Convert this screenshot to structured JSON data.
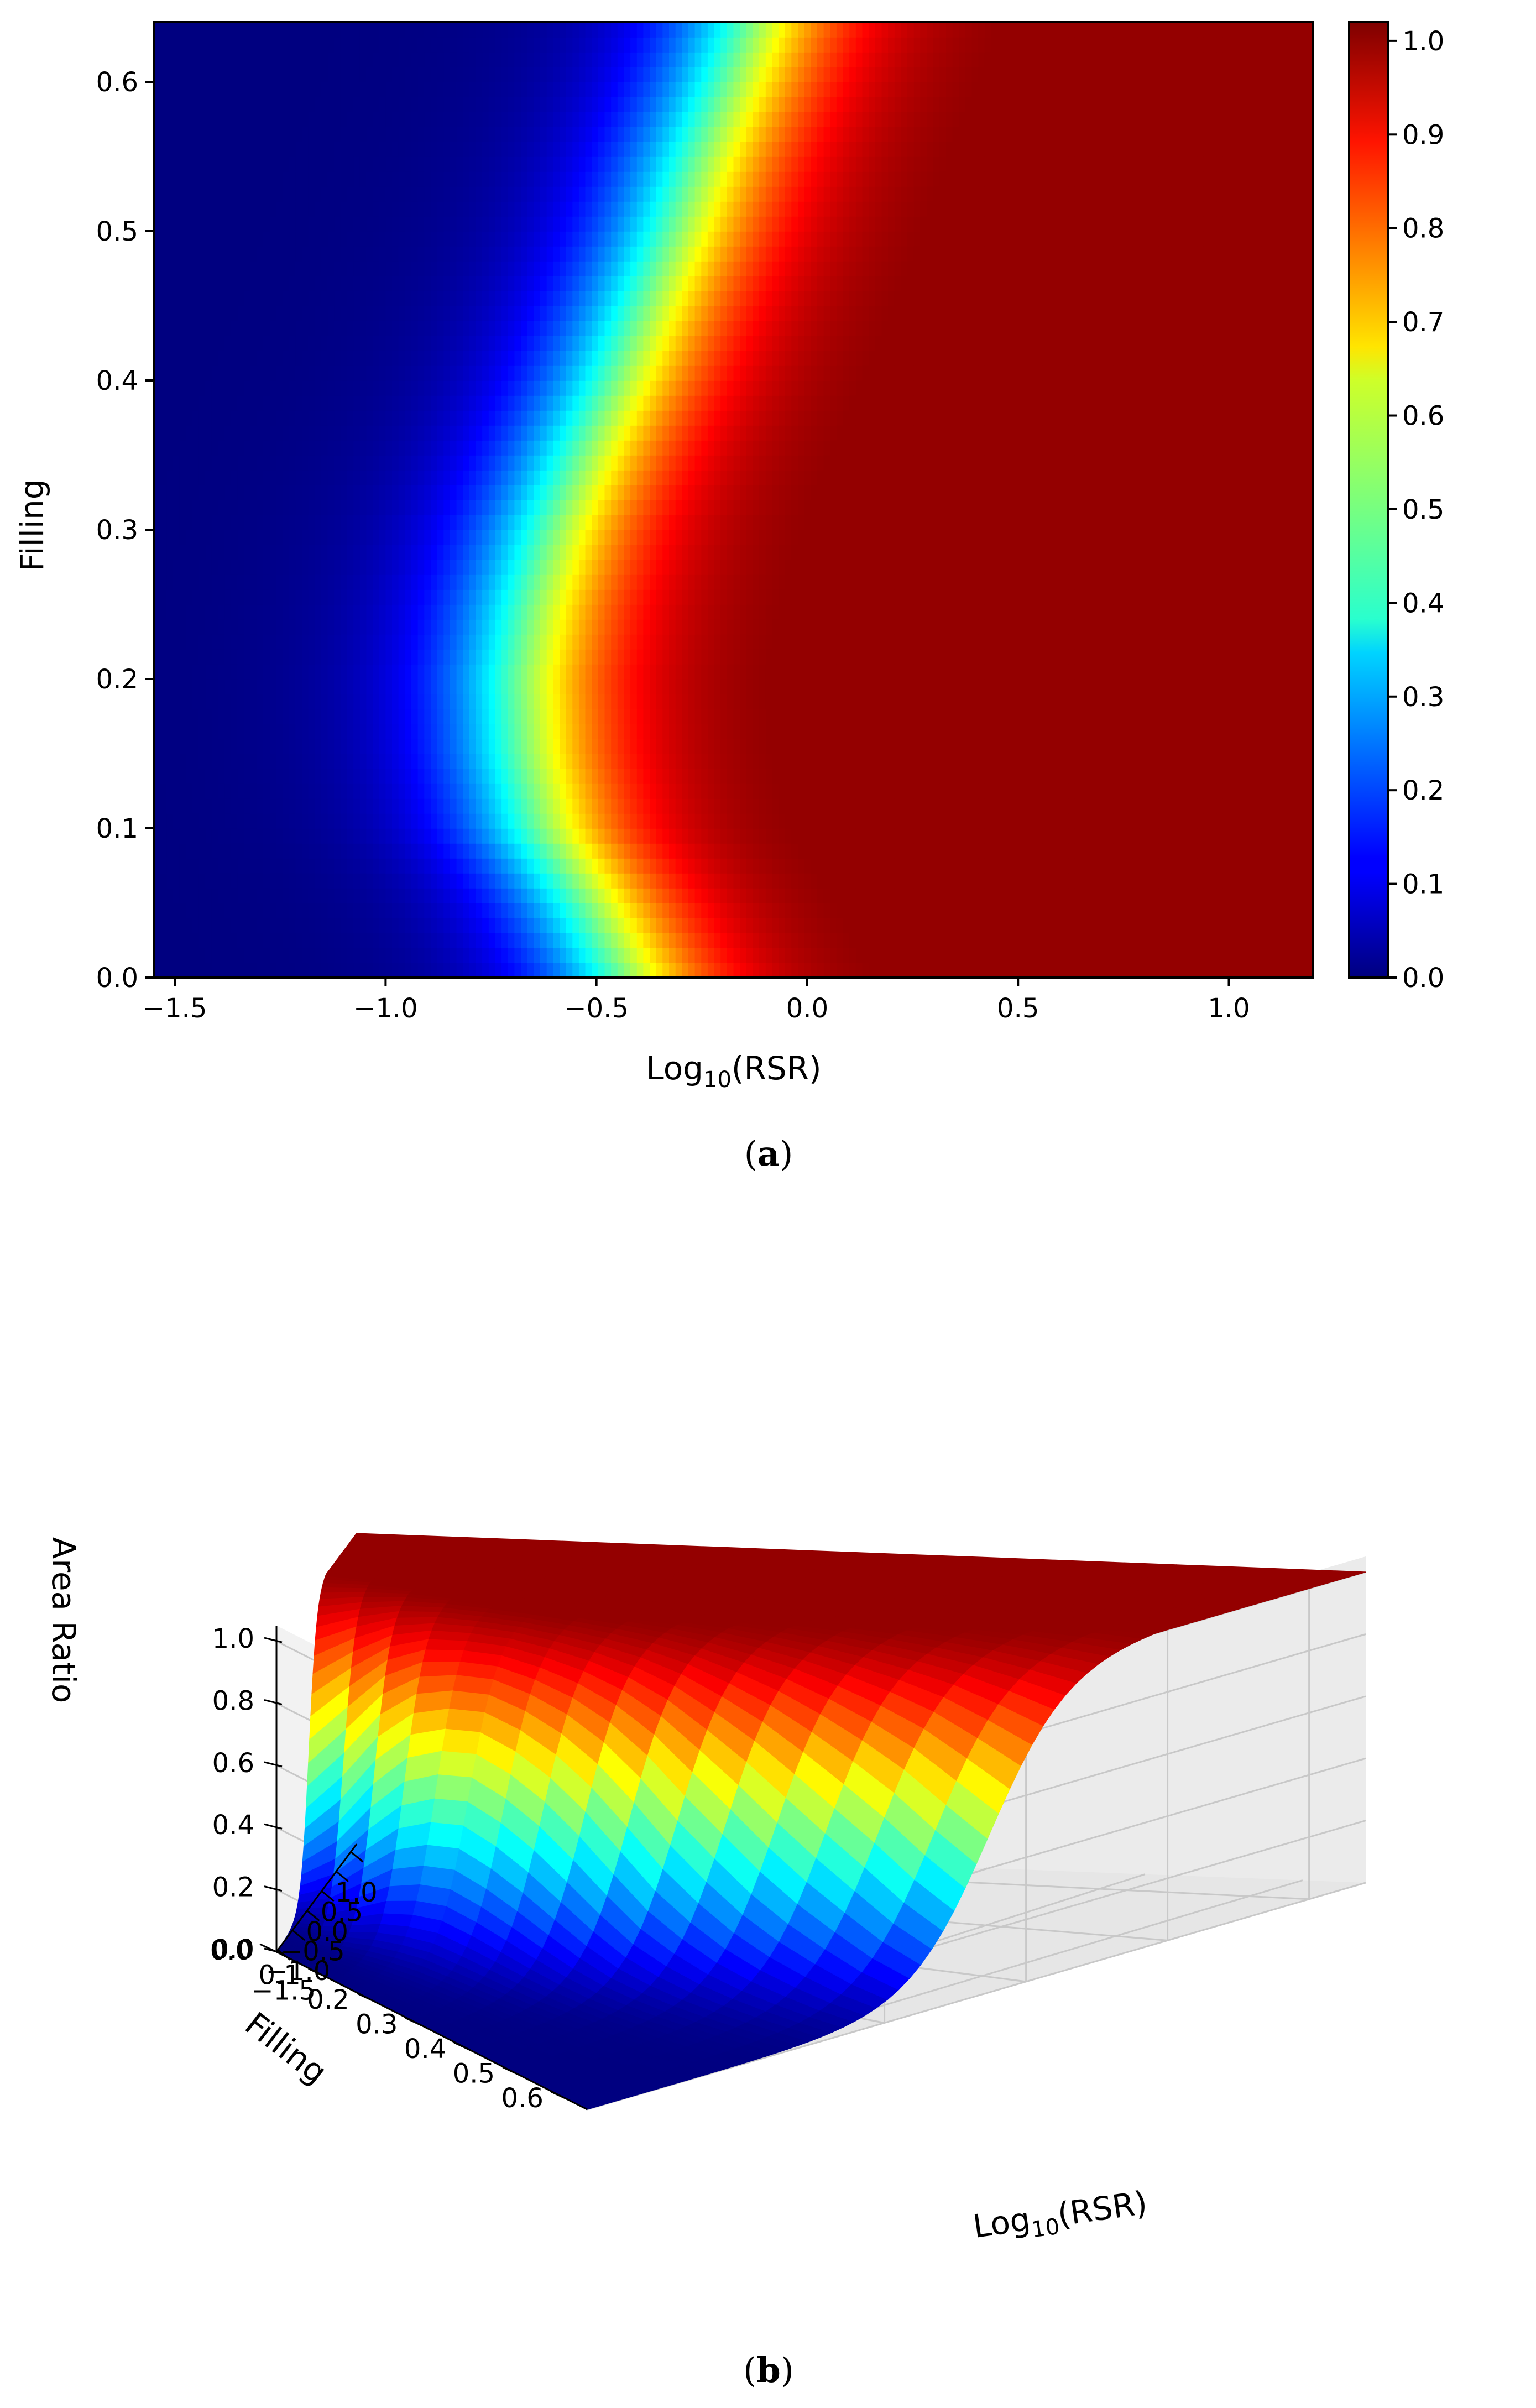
{
  "chart_data": [
    {
      "panel": "a",
      "type": "heatmap",
      "caption_letter": "a",
      "xlabel": {
        "base": "Log",
        "sub": "10",
        "rest": "(RSR)"
      },
      "ylabel": "Filling",
      "xlim": [
        -1.55,
        1.2
      ],
      "ylim": [
        0.0,
        0.64
      ],
      "xticks": [
        "−1.5",
        "−1.0",
        "−0.5",
        "0.0",
        "0.5",
        "1.0"
      ],
      "xtick_values": [
        -1.5,
        -1.0,
        -0.5,
        0.0,
        0.5,
        1.0
      ],
      "yticks": [
        "0.0",
        "0.1",
        "0.2",
        "0.3",
        "0.4",
        "0.5",
        "0.6"
      ],
      "ytick_values": [
        0.0,
        0.1,
        0.2,
        0.3,
        0.4,
        0.5,
        0.6
      ],
      "colormap": "jet",
      "colorbar": {
        "range": [
          0.0,
          1.02
        ],
        "ticks": [
          "0.0",
          "0.1",
          "0.2",
          "0.3",
          "0.4",
          "0.5",
          "0.6",
          "0.7",
          "0.8",
          "0.9",
          "1.0"
        ],
        "tick_values": [
          0.0,
          0.1,
          0.2,
          0.3,
          0.4,
          0.5,
          0.6,
          0.7,
          0.8,
          0.9,
          1.0
        ]
      },
      "transition_center_log10_rsr": {
        "filling": [
          0.0,
          0.05,
          0.1,
          0.15,
          0.2,
          0.25,
          0.3,
          0.35,
          0.4,
          0.45,
          0.5,
          0.55,
          0.6,
          0.64
        ],
        "log10_rsr": [
          -0.43,
          -0.52,
          -0.63,
          -0.67,
          -0.68,
          -0.65,
          -0.6,
          -0.53,
          -0.45,
          -0.38,
          -0.31,
          -0.25,
          -0.18,
          -0.13
        ]
      },
      "transition_width": 0.14
    },
    {
      "panel": "b",
      "type": "surface3d",
      "caption_letter": "b",
      "xlabel": {
        "base": "Log",
        "sub": "10",
        "rest": "(RSR)"
      },
      "ylabel": "Filling",
      "zlabel": "Area Ratio",
      "xticks": [
        "−1.5",
        "−1.0",
        "−0.5",
        "0.0",
        "0.5",
        "1.0"
      ],
      "xtick_values": [
        -1.5,
        -1.0,
        -0.5,
        0.0,
        0.5,
        1.0
      ],
      "yticks": [
        "0.0",
        "0.1",
        "0.2",
        "0.3",
        "0.4",
        "0.5",
        "0.6"
      ],
      "ytick_values": [
        0.0,
        0.1,
        0.2,
        0.3,
        0.4,
        0.5,
        0.6
      ],
      "zticks": [
        "0.0",
        "0.2",
        "0.4",
        "0.6",
        "0.8",
        "1.0"
      ],
      "ztick_values": [
        0.0,
        0.2,
        0.4,
        0.6,
        0.8,
        1.0
      ],
      "xlim": [
        -1.55,
        1.2
      ],
      "ylim": [
        0.0,
        0.64
      ],
      "zlim": [
        0.0,
        1.05
      ],
      "colormap": "jet"
    }
  ]
}
